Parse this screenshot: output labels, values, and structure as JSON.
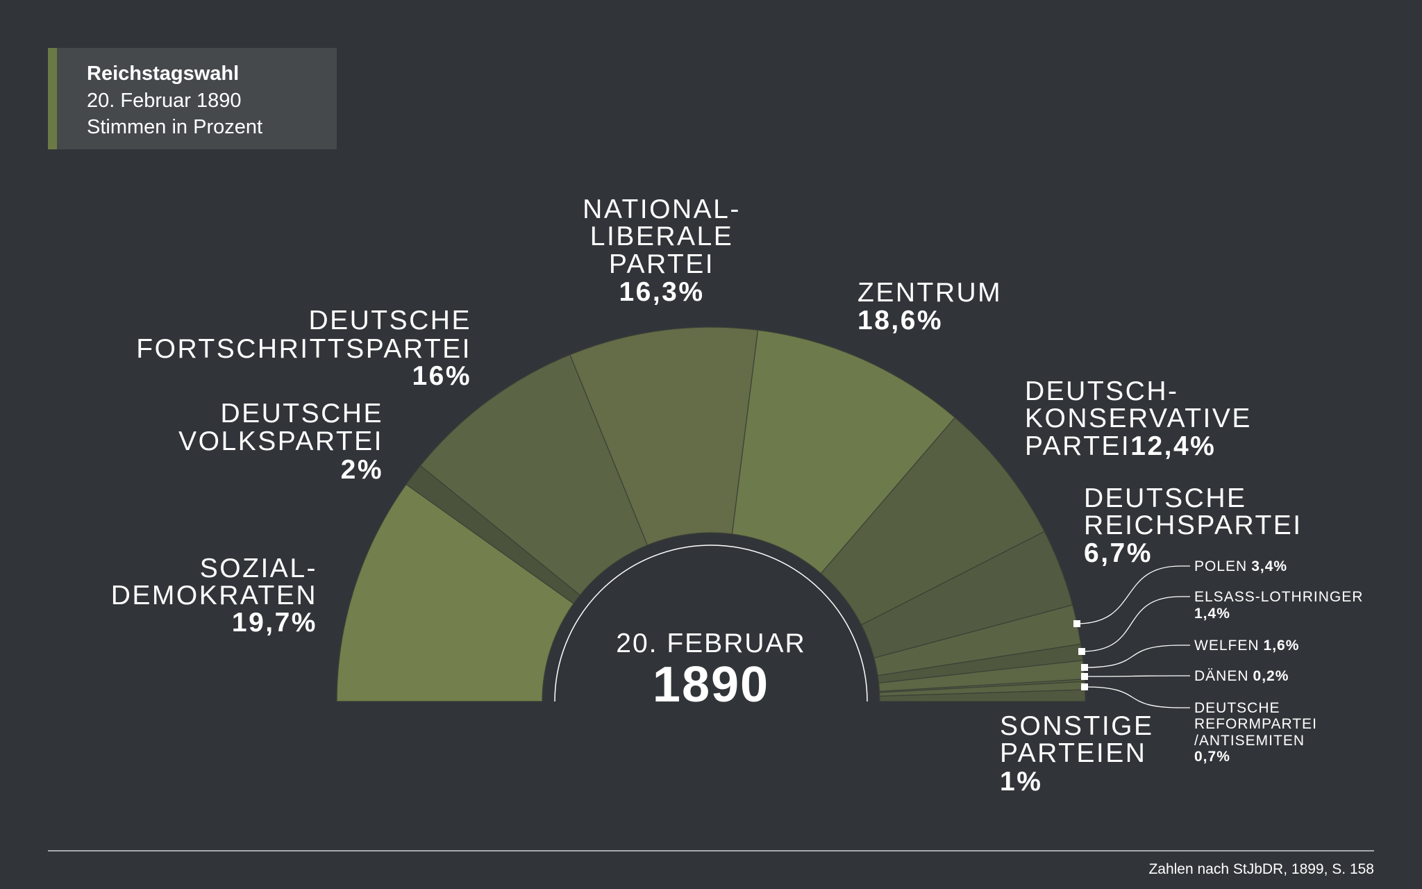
{
  "header": {
    "lines": [
      "Reichstagswahl",
      "20. Februar 1890",
      "Stimmen in Prozent"
    ]
  },
  "chart_data": {
    "type": "semi-donut",
    "center_label": [
      "20. FEBRUAR",
      "1890"
    ],
    "categories": [
      [
        "SOZIAL-",
        "DEMOKRATEN"
      ],
      [
        "DEUTSCHE",
        "VOLKSPARTEI"
      ],
      [
        "DEUTSCHE",
        "FORTSCHRITTSPARTEI"
      ],
      [
        "NATIONAL-",
        "LIBERALE",
        "PARTEI"
      ],
      [
        "ZENTRUM"
      ],
      [
        "DEUTSCH-",
        "KONSERVATIVE",
        "PARTEI"
      ],
      [
        "DEUTSCHE",
        "REICHSPARTEI"
      ],
      [
        "POLEN"
      ],
      [
        "ELSASS-LOTHRINGER"
      ],
      [
        "WELFEN"
      ],
      [
        "DÄNEN"
      ],
      [
        "DEUTSCHE",
        "REFORMPARTEI",
        "/ANTISEMITEN"
      ],
      [
        "SONSTIGE",
        "PARTEIEN"
      ]
    ],
    "values": [
      19.7,
      2,
      16,
      16.3,
      18.6,
      12.4,
      6.7,
      3.4,
      1.4,
      1.6,
      0.2,
      0.7,
      1
    ],
    "value_labels": [
      "19,7%",
      "2%",
      "16%",
      "16,3%",
      "18,6%",
      "12,4%",
      "6,7%",
      "3,4%",
      "1,4%",
      "1,6%",
      "0,2%",
      "0,7%",
      "1%"
    ],
    "colors": [
      "#737f4c",
      "#4b533d",
      "#5b6444",
      "#646c48",
      "#6d7a4b",
      "#575f42",
      "#525a41",
      "#5a6344",
      "#4f573e",
      "#5d6645",
      "#555d41",
      "#5a6343",
      "#50583f"
    ]
  },
  "source": "Zahlen nach StJbDR, 1899, S. 158"
}
